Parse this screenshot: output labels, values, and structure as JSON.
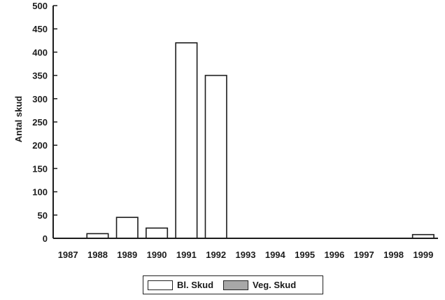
{
  "chart_data": {
    "type": "bar",
    "title": "",
    "xlabel": "",
    "ylabel": "Antal skud",
    "ylim": [
      0,
      500
    ],
    "yticks": [
      0,
      50,
      100,
      150,
      200,
      250,
      300,
      350,
      400,
      450,
      500
    ],
    "categories": [
      "1987",
      "1988",
      "1989",
      "1990",
      "1991",
      "1992",
      "1993",
      "1994",
      "1995",
      "1996",
      "1997",
      "1998",
      "1999"
    ],
    "series": [
      {
        "name": "Bl. Skud",
        "color": "#ffffff",
        "values": [
          0,
          10,
          45,
          22,
          420,
          350,
          0,
          0,
          0,
          0,
          0,
          0,
          8
        ]
      },
      {
        "name": "Veg. Skud",
        "color": "#a8a8a8",
        "values": [
          0,
          0,
          0,
          0,
          0,
          0,
          0,
          0,
          0,
          0,
          0,
          0,
          0
        ]
      }
    ],
    "legend": {
      "position": "bottom",
      "items": [
        "Bl. Skud",
        "Veg. Skud"
      ]
    },
    "grid": false
  }
}
